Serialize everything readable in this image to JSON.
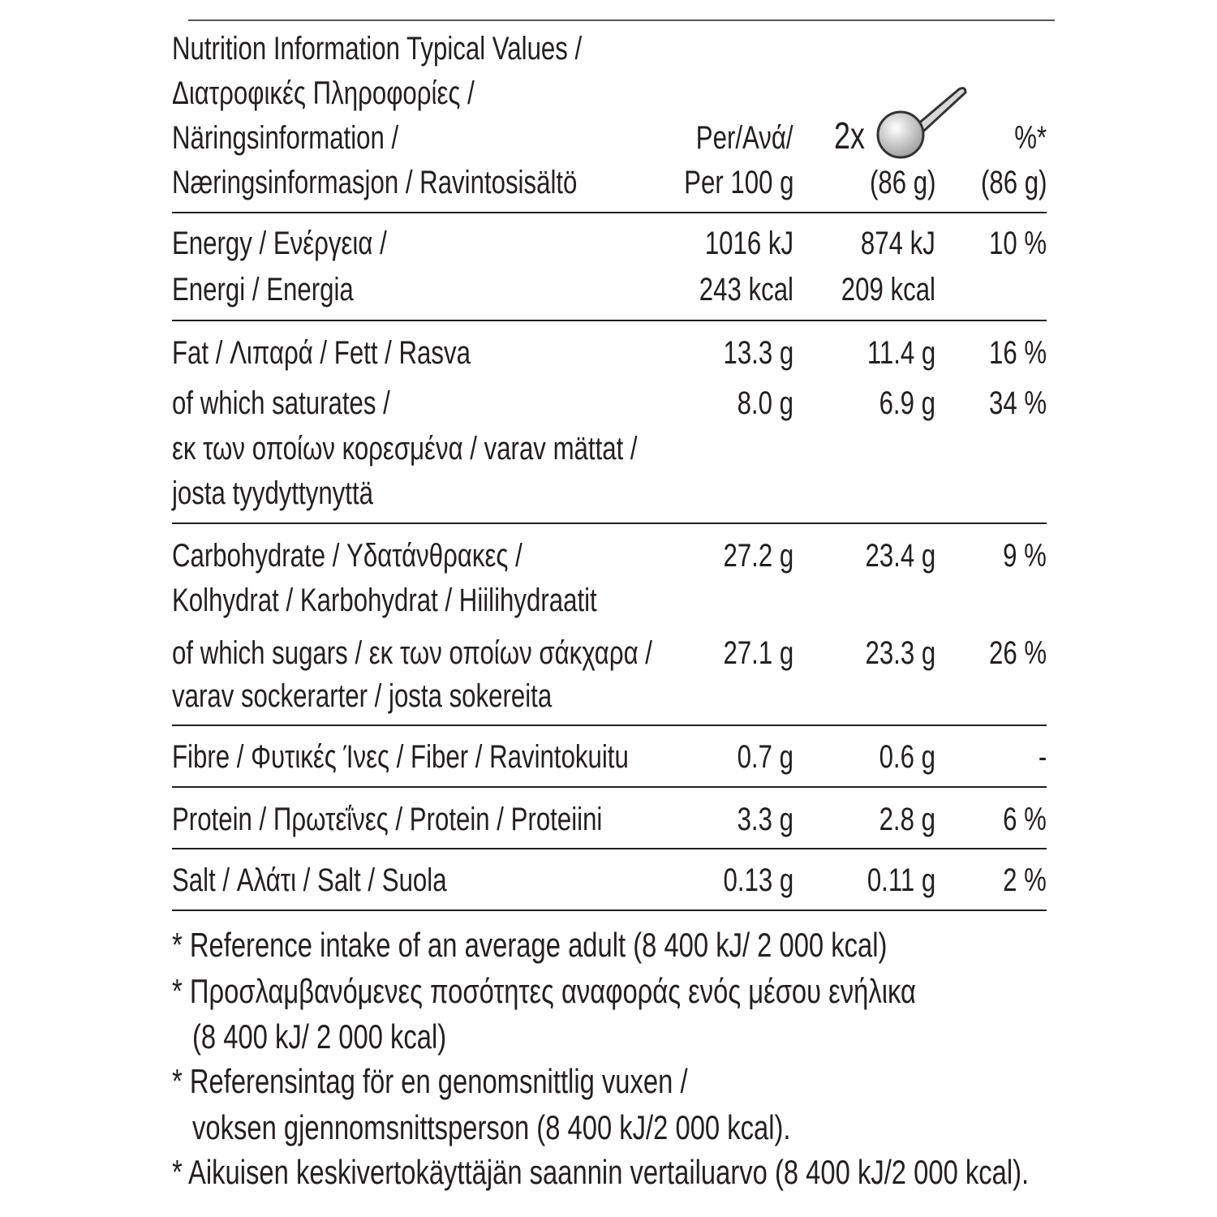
{
  "header": {
    "title_lines": [
      "Nutrition Information Typical Values /",
      "Διατροφικές Πληροφορίες /",
      "Näringsinformation /",
      "Næringsinformasjon / Ravintosisältö"
    ],
    "col_per100": [
      "Per/Ανά/",
      "Per 100 g"
    ],
    "col_serving": {
      "multiplier": "2x",
      "icon": "spoon-icon",
      "amount": "(86 g)"
    },
    "col_pct": [
      "%*",
      "(86 g)"
    ]
  },
  "rows": [
    {
      "label": [
        "Energy / Ενέργεια /",
        "Energi / Energia"
      ],
      "per100": [
        "1016 kJ",
        "243 kcal"
      ],
      "serving": [
        "874 kJ",
        "209 kcal"
      ],
      "pct": [
        "10 %"
      ]
    },
    {
      "label": [
        "Fat / Λιπαρά / Fett / Rasva"
      ],
      "per100": [
        "13.3 g"
      ],
      "serving": [
        "11.4 g"
      ],
      "pct": [
        "16 %"
      ]
    },
    {
      "label": [
        "of which saturates /",
        "εκ των οποίων κορεσμένα / varav mättat /",
        "josta tyydyttynyttä"
      ],
      "per100": [
        "8.0 g"
      ],
      "serving": [
        "6.9 g"
      ],
      "pct": [
        "34 %"
      ]
    },
    {
      "label": [
        "Carbohydrate / Υδατάνθρακες /",
        "Kolhydrat / Karbohydrat / Hiilihydraatit"
      ],
      "per100": [
        "27.2 g"
      ],
      "serving": [
        "23.4 g"
      ],
      "pct": [
        "9 %"
      ]
    },
    {
      "label": [
        "of which sugars / εκ των οποίων σάκχαρα /",
        "varav sockerarter / josta sokereita"
      ],
      "per100": [
        "27.1 g"
      ],
      "serving": [
        "23.3 g"
      ],
      "pct": [
        "26 %"
      ]
    },
    {
      "label": [
        "Fibre / Φυτικές Ίνες / Fiber / Ravintokuitu"
      ],
      "per100": [
        "0.7 g"
      ],
      "serving": [
        "0.6 g"
      ],
      "pct": [
        "-"
      ]
    },
    {
      "label": [
        "Protein / Πρωτεΐνες / Protein / Proteiini"
      ],
      "per100": [
        "3.3 g"
      ],
      "serving": [
        "2.8 g"
      ],
      "pct": [
        "6 %"
      ]
    },
    {
      "label": [
        "Salt / Αλάτι / Salt / Suola"
      ],
      "per100": [
        "0.13 g"
      ],
      "serving": [
        "0.11 g"
      ],
      "pct": [
        "2 %"
      ]
    }
  ],
  "footnotes": [
    "* Reference intake of an average adult (8 400 kJ/ 2 000 kcal)",
    "* Προσλαμβανόμενες ποσότητες αναφοράς ενός μέσου ενήλικα",
    "(8 400 kJ/ 2 000 kcal)",
    "* Referensintag för en genomsnittlig vuxen /",
    "voksen gjennomsnittsperson (8 400 kJ/2 000 kcal).",
    "* Aikuisen keskivertokäyttäjän saannin vertailuarvo (8 400 kJ/2 000 kcal)."
  ]
}
